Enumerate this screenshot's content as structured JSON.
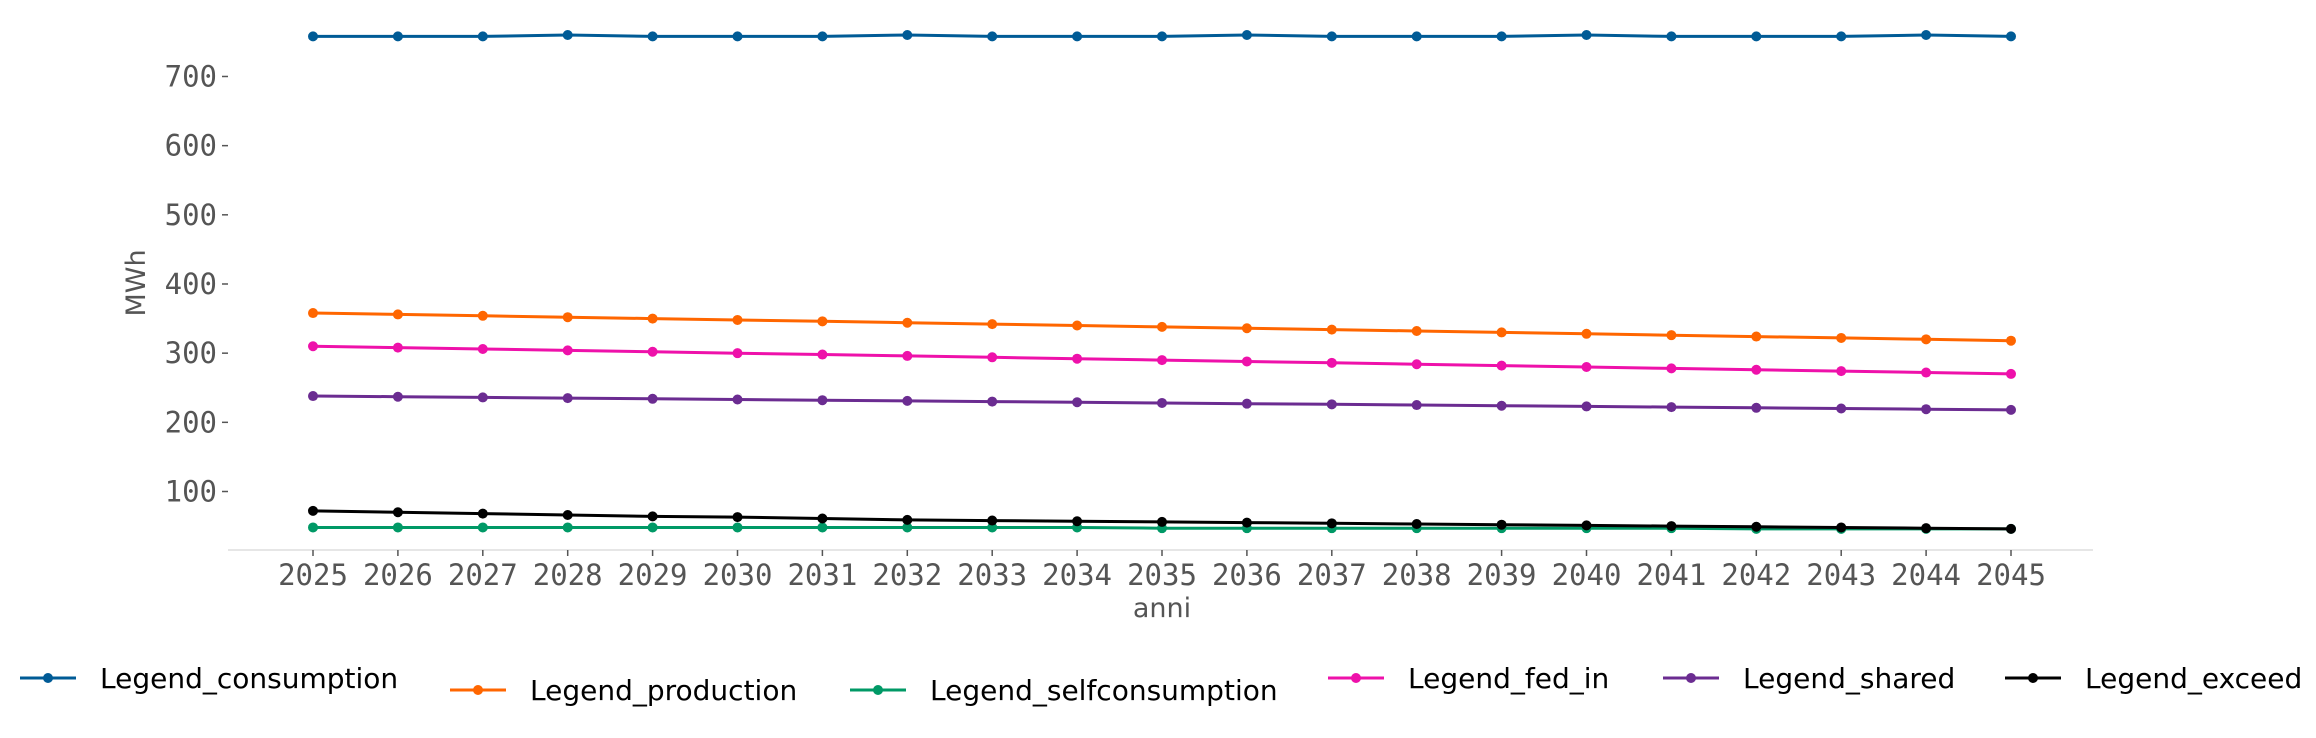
{
  "chart_data": {
    "type": "line",
    "title": "",
    "xlabel": "anni",
    "ylabel": "MWh",
    "x": [
      "2025",
      "2026",
      "2027",
      "2028",
      "2029",
      "2030",
      "2031",
      "2032",
      "2033",
      "2034",
      "2035",
      "2036",
      "2037",
      "2038",
      "2039",
      "2040",
      "2041",
      "2042",
      "2043",
      "2044",
      "2045"
    ],
    "yticks": [
      100,
      200,
      300,
      400,
      500,
      600,
      700
    ],
    "ylim": [
      10,
      780
    ],
    "grid": false,
    "legend_position": "bottom",
    "series": [
      {
        "name": "Legend_consumption",
        "color": "#005b96",
        "values": [
          758,
          758,
          758,
          760,
          758,
          758,
          758,
          760,
          758,
          758,
          758,
          760,
          758,
          758,
          758,
          760,
          758,
          758,
          758,
          760,
          758
        ]
      },
      {
        "name": "Legend_production",
        "color": "#ff6600",
        "values": [
          358,
          356,
          354,
          352,
          350,
          348,
          346,
          344,
          342,
          340,
          338,
          336,
          334,
          332,
          330,
          328,
          326,
          324,
          322,
          320,
          318
        ]
      },
      {
        "name": "Legend_selfconsumption",
        "color": "#009966",
        "values": [
          48,
          48,
          48,
          48,
          48,
          48,
          48,
          48,
          48,
          48,
          47,
          47,
          47,
          47,
          47,
          47,
          47,
          46,
          46,
          46,
          46
        ]
      },
      {
        "name": "Legend_fed_in",
        "color": "#ee11aa",
        "values": [
          310,
          308,
          306,
          304,
          302,
          300,
          298,
          296,
          294,
          292,
          290,
          288,
          286,
          284,
          282,
          280,
          278,
          276,
          274,
          272,
          270
        ]
      },
      {
        "name": "Legend_shared",
        "color": "#6b2c91",
        "values": [
          238,
          237,
          236,
          235,
          234,
          233,
          232,
          231,
          230,
          229,
          228,
          227,
          226,
          225,
          224,
          223,
          222,
          221,
          220,
          219,
          218
        ]
      },
      {
        "name": "Legend_exceed",
        "color": "#000000",
        "values": [
          72,
          70,
          68,
          66,
          64,
          63,
          61,
          59,
          58,
          57,
          56,
          55,
          54,
          53,
          52,
          51,
          50,
          49,
          48,
          47,
          46
        ]
      }
    ]
  }
}
